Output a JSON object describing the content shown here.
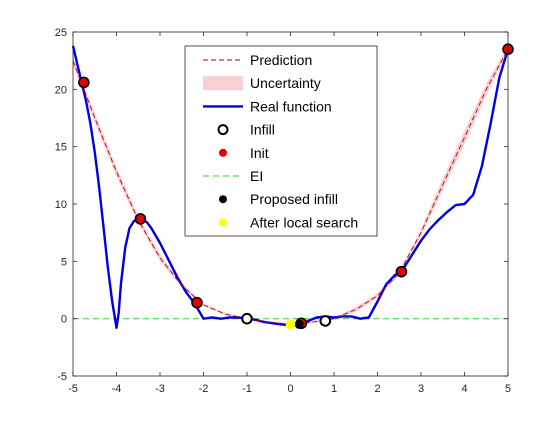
{
  "chart_data": {
    "type": "line",
    "title": "",
    "xlabel": "",
    "ylabel": "",
    "xlim": [
      -5,
      5
    ],
    "ylim": [
      -5,
      25
    ],
    "xticks": [
      "-5",
      "-4",
      "-3",
      "-2",
      "-1",
      "0",
      "1",
      "2",
      "3",
      "4",
      "5"
    ],
    "yticks": [
      "-5",
      "0",
      "5",
      "10",
      "15",
      "20",
      "25"
    ],
    "grid": false,
    "legend_position": "top-center",
    "colors": {
      "prediction": "#c00000",
      "uncertainty": "#f7d0d4",
      "real_function": "#0000e6",
      "infill_edge": "#000000",
      "init_fill": "#e60000",
      "ei": "#33cc33",
      "proposed_infill": "#000000",
      "after_local_search": "#ffff00"
    },
    "series": [
      {
        "name": "Prediction",
        "style": "dashed",
        "x": [
          -5,
          -4.5,
          -4,
          -3.5,
          -3,
          -2.5,
          -2,
          -1.5,
          -1,
          -0.5,
          0,
          0.5,
          1,
          1.5,
          2,
          2.5,
          3,
          3.5,
          4,
          4.5,
          5
        ],
        "y": [
          22.5,
          17.5,
          12.8,
          8.6,
          5.3,
          2.9,
          1.2,
          0.4,
          0.0,
          -0.3,
          -0.5,
          -0.3,
          0.0,
          0.8,
          2.0,
          4.0,
          7.5,
          11.7,
          15.8,
          20.0,
          23.5
        ]
      },
      {
        "name": "Uncertainty",
        "style": "band",
        "x": [
          -5,
          -4.5,
          -4,
          -3.5,
          -3,
          -2.5,
          -2,
          -1.5,
          -1,
          -0.5,
          0,
          0.5,
          1,
          1.5,
          2,
          2.5,
          3,
          3.5,
          4,
          4.5,
          5
        ],
        "lower": [
          22.1,
          17.1,
          12.4,
          8.3,
          5.0,
          2.7,
          1.1,
          0.3,
          -0.1,
          -0.4,
          -0.6,
          -0.4,
          -0.1,
          0.6,
          1.8,
          3.8,
          7.2,
          11.2,
          15.2,
          19.5,
          23.2
        ],
        "upper": [
          22.9,
          17.9,
          13.2,
          8.9,
          5.6,
          3.1,
          1.3,
          0.5,
          0.1,
          -0.2,
          -0.4,
          -0.2,
          0.1,
          1.0,
          2.2,
          4.2,
          7.8,
          12.2,
          16.4,
          20.5,
          23.8
        ]
      },
      {
        "name": "Real function",
        "style": "solid",
        "x": [
          -5,
          -4.9,
          -4.8,
          -4.7,
          -4.6,
          -4.5,
          -4.4,
          -4.3,
          -4.2,
          -4.1,
          -4.0,
          -3.95,
          -3.9,
          -3.8,
          -3.7,
          -3.6,
          -3.5,
          -3.4,
          -3.3,
          -3.2,
          -3.0,
          -2.8,
          -2.6,
          -2.4,
          -2.2,
          -2.0,
          -1.8,
          -1.6,
          -1.4,
          -1.2,
          -1.0,
          -0.8,
          -0.6,
          -0.4,
          -0.2,
          0,
          0.2,
          0.4,
          0.6,
          0.8,
          1.0,
          1.2,
          1.4,
          1.6,
          1.8,
          2.0,
          2.2,
          2.4,
          2.5,
          2.6,
          2.8,
          3.0,
          3.2,
          3.4,
          3.6,
          3.8,
          4.0,
          4.2,
          4.4,
          4.6,
          4.8,
          5.0
        ],
        "y": [
          23.8,
          22.2,
          20.6,
          19.0,
          17.0,
          14.5,
          11.5,
          8.0,
          4.5,
          1.5,
          -0.8,
          0.5,
          3.0,
          6.2,
          7.9,
          8.5,
          8.7,
          8.6,
          8.4,
          7.9,
          6.6,
          5.1,
          3.6,
          2.3,
          1.3,
          0.0,
          0.1,
          0.0,
          0.1,
          0.1,
          0.0,
          -0.1,
          -0.3,
          -0.4,
          -0.5,
          -0.6,
          -0.5,
          -0.2,
          0.1,
          0.2,
          0.1,
          0.2,
          0.2,
          0.0,
          0.1,
          1.5,
          3.0,
          3.8,
          4.0,
          4.4,
          5.6,
          6.8,
          7.8,
          8.6,
          9.3,
          9.9,
          10.0,
          10.8,
          13.3,
          17.0,
          21.0,
          23.5
        ]
      },
      {
        "name": "EI",
        "style": "dashed",
        "x": [
          -5,
          5
        ],
        "y": [
          0,
          0
        ]
      }
    ],
    "points": [
      {
        "name": "Infill",
        "x": [
          -1.0,
          0.8
        ],
        "y": [
          0.0,
          -0.2
        ]
      },
      {
        "name": "Init",
        "x": [
          -4.75,
          -3.45,
          -2.15,
          0.25,
          2.55,
          5.0
        ],
        "y": [
          20.6,
          8.7,
          1.4,
          -0.4,
          4.1,
          23.5
        ]
      },
      {
        "name": "Proposed infill",
        "x": [
          0.2
        ],
        "y": [
          -0.5
        ]
      },
      {
        "name": "After local search",
        "x": [
          0.0
        ],
        "y": [
          -0.5
        ]
      }
    ]
  },
  "legend": {
    "items": [
      {
        "label": "Prediction",
        "kind": "dash-line"
      },
      {
        "label": "Uncertainty",
        "kind": "patch"
      },
      {
        "label": "Real function",
        "kind": "solid-line"
      },
      {
        "label": "Infill",
        "kind": "open-circle"
      },
      {
        "label": "Init",
        "kind": "red-dot"
      },
      {
        "label": "EI",
        "kind": "green-dash"
      },
      {
        "label": "Proposed infill",
        "kind": "black-dot"
      },
      {
        "label": "After local search",
        "kind": "yellow-dot"
      }
    ]
  }
}
